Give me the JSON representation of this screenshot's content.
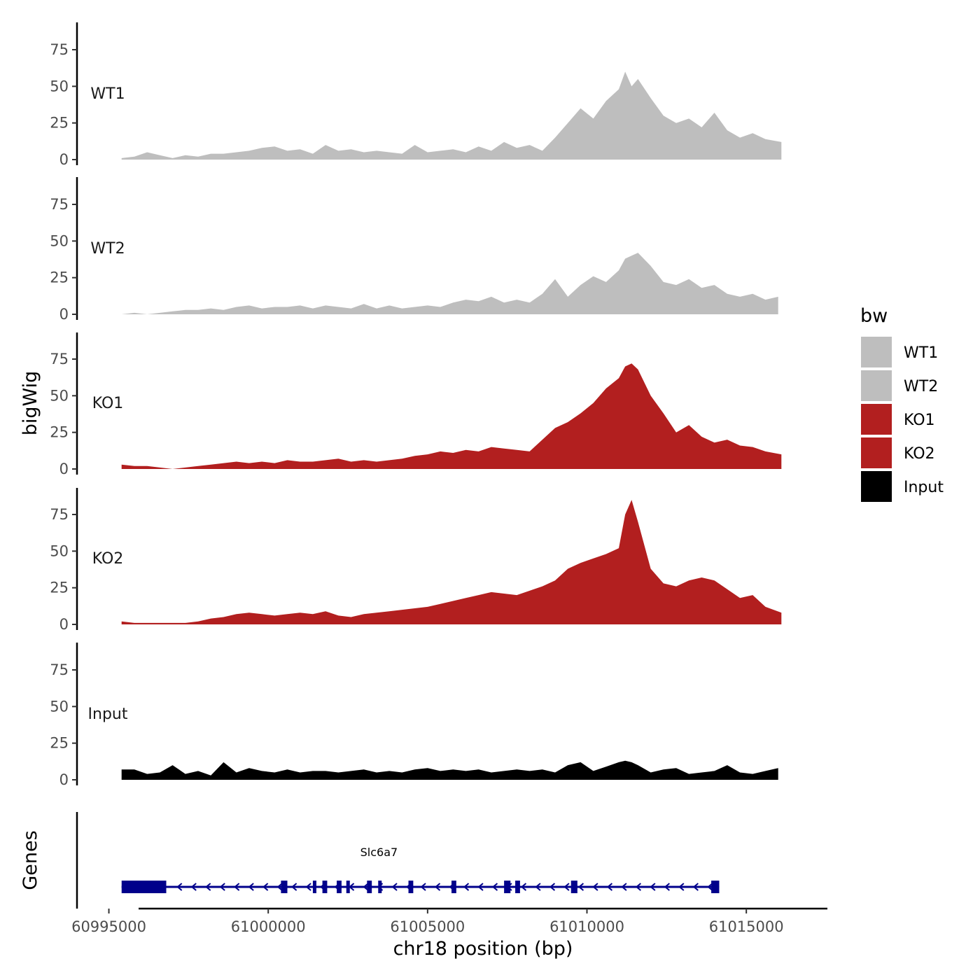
{
  "chart_data": {
    "type": "area",
    "ylabel": "bigWig",
    "xlabel": "chr18 position (bp)",
    "gene_track_label": "Genes",
    "legend_title": "bw",
    "xlim": [
      60994000,
      61017500
    ],
    "x_ticks": [
      60995000,
      61000000,
      61005000,
      61010000,
      61015000
    ],
    "x_tick_labels": [
      "60995000",
      "61000000",
      "61005000",
      "61010000",
      "61015000"
    ],
    "ylim": [
      0,
      95
    ],
    "y_ticks": [
      0,
      25,
      50,
      75
    ],
    "y_tick_labels": [
      "0",
      "25",
      "50",
      "75"
    ],
    "colors": {
      "WT1": "#bebebe",
      "WT2": "#bebebe",
      "KO1": "#b21f1f",
      "KO2": "#b21f1f",
      "Input": "#000000",
      "gene": "#00008b"
    },
    "legend": [
      "WT1",
      "WT2",
      "KO1",
      "KO2",
      "Input"
    ],
    "series": [
      {
        "name": "WT1",
        "label": "WT1",
        "x": [
          60995400,
          60995800,
          60996200,
          60996600,
          60997000,
          60997400,
          60997800,
          60998200,
          60998600,
          60999000,
          60999400,
          60999800,
          61000200,
          61000600,
          61001000,
          61001400,
          61001800,
          61002200,
          61002600,
          61003000,
          61003400,
          61003800,
          61004200,
          61004600,
          61005000,
          61005400,
          61005800,
          61006200,
          61006600,
          61007000,
          61007400,
          61007800,
          61008200,
          61008600,
          61009000,
          61009400,
          61009800,
          61010200,
          61010600,
          61011000,
          61011200,
          61011400,
          61011600,
          61012000,
          61012400,
          61012800,
          61013200,
          61013600,
          61014000,
          61014400,
          61014800,
          61015200,
          61015600,
          61016100
        ],
        "values": [
          1,
          2,
          5,
          3,
          1,
          3,
          2,
          4,
          4,
          5,
          6,
          8,
          9,
          6,
          7,
          4,
          10,
          6,
          7,
          5,
          6,
          5,
          4,
          10,
          5,
          6,
          7,
          5,
          9,
          6,
          12,
          8,
          10,
          6,
          15,
          25,
          35,
          28,
          40,
          48,
          60,
          50,
          55,
          42,
          30,
          25,
          28,
          22,
          32,
          20,
          15,
          18,
          14,
          12
        ]
      },
      {
        "name": "WT2",
        "label": "WT2",
        "x": [
          60995400,
          60995800,
          60996200,
          60996600,
          60997000,
          60997400,
          60997800,
          60998200,
          60998600,
          60999000,
          60999400,
          60999800,
          61000200,
          61000600,
          61001000,
          61001400,
          61001800,
          61002200,
          61002600,
          61003000,
          61003400,
          61003800,
          61004200,
          61004600,
          61005000,
          61005400,
          61005800,
          61006200,
          61006600,
          61007000,
          61007400,
          61007800,
          61008200,
          61008600,
          61009000,
          61009400,
          61009800,
          61010200,
          61010600,
          61011000,
          61011200,
          61011400,
          61011600,
          61012000,
          61012400,
          61012800,
          61013200,
          61013600,
          61014000,
          61014400,
          61014800,
          61015200,
          61015600,
          61016000
        ],
        "values": [
          0,
          1,
          0,
          1,
          2,
          3,
          3,
          4,
          3,
          5,
          6,
          4,
          5,
          5,
          6,
          4,
          6,
          5,
          4,
          7,
          4,
          6,
          4,
          5,
          6,
          5,
          8,
          10,
          9,
          12,
          8,
          10,
          8,
          14,
          24,
          12,
          20,
          26,
          22,
          30,
          38,
          40,
          42,
          33,
          22,
          20,
          24,
          18,
          20,
          14,
          12,
          14,
          10,
          12
        ]
      },
      {
        "name": "KO1",
        "label": "KO1",
        "x": [
          60995400,
          60995800,
          60996200,
          60996600,
          60997000,
          60997400,
          60997800,
          60998200,
          60998600,
          60999000,
          60999400,
          60999800,
          61000200,
          61000600,
          61001000,
          61001400,
          61001800,
          61002200,
          61002600,
          61003000,
          61003400,
          61003800,
          61004200,
          61004600,
          61005000,
          61005400,
          61005800,
          61006200,
          61006600,
          61007000,
          61007400,
          61007800,
          61008200,
          61008600,
          61009000,
          61009400,
          61009800,
          61010200,
          61010600,
          61011000,
          61011200,
          61011400,
          61011600,
          61012000,
          61012400,
          61012800,
          61013200,
          61013600,
          61014000,
          61014400,
          61014800,
          61015200,
          61015600,
          61016100
        ],
        "values": [
          3,
          2,
          2,
          1,
          0,
          1,
          2,
          3,
          4,
          5,
          4,
          5,
          4,
          6,
          5,
          5,
          6,
          7,
          5,
          6,
          5,
          6,
          7,
          9,
          10,
          12,
          11,
          13,
          12,
          15,
          14,
          13,
          12,
          20,
          28,
          32,
          38,
          45,
          55,
          62,
          70,
          72,
          68,
          50,
          38,
          25,
          30,
          22,
          18,
          20,
          16,
          15,
          12,
          10
        ]
      },
      {
        "name": "KO2",
        "label": "KO2",
        "x": [
          60995400,
          60995800,
          60996200,
          60996600,
          60997000,
          60997400,
          60997800,
          60998200,
          60998600,
          60999000,
          60999400,
          60999800,
          61000200,
          61000600,
          61001000,
          61001400,
          61001800,
          61002200,
          61002600,
          61003000,
          61003400,
          61003800,
          61004200,
          61004600,
          61005000,
          61005400,
          61005800,
          61006200,
          61006600,
          61007000,
          61007400,
          61007800,
          61008200,
          61008600,
          61009000,
          61009400,
          61009800,
          61010200,
          61010600,
          61011000,
          61011200,
          61011400,
          61011600,
          61012000,
          61012400,
          61012800,
          61013200,
          61013600,
          61014000,
          61014400,
          61014800,
          61015200,
          61015600,
          61016100
        ],
        "values": [
          2,
          1,
          1,
          1,
          1,
          1,
          2,
          4,
          5,
          7,
          8,
          7,
          6,
          7,
          8,
          7,
          9,
          6,
          5,
          7,
          8,
          9,
          10,
          11,
          12,
          14,
          16,
          18,
          20,
          22,
          21,
          20,
          23,
          26,
          30,
          38,
          42,
          45,
          48,
          52,
          75,
          85,
          70,
          38,
          28,
          26,
          30,
          32,
          30,
          24,
          18,
          20,
          12,
          8
        ]
      },
      {
        "name": "Input",
        "label": "Input",
        "x": [
          60995400,
          60995800,
          60996200,
          60996600,
          60997000,
          60997400,
          60997800,
          60998200,
          60998600,
          60999000,
          60999400,
          60999800,
          61000200,
          61000600,
          61001000,
          61001400,
          61001800,
          61002200,
          61002600,
          61003000,
          61003400,
          61003800,
          61004200,
          61004600,
          61005000,
          61005400,
          61005800,
          61006200,
          61006600,
          61007000,
          61007400,
          61007800,
          61008200,
          61008600,
          61009000,
          61009400,
          61009800,
          61010200,
          61010600,
          61011000,
          61011200,
          61011400,
          61011600,
          61012000,
          61012400,
          61012800,
          61013200,
          61013600,
          61014000,
          61014400,
          61014800,
          61015200,
          61015600,
          61016000
        ],
        "values": [
          7,
          7,
          4,
          5,
          10,
          4,
          6,
          3,
          12,
          5,
          8,
          6,
          5,
          7,
          5,
          6,
          6,
          5,
          6,
          7,
          5,
          6,
          5,
          7,
          8,
          6,
          7,
          6,
          7,
          5,
          6,
          7,
          6,
          7,
          5,
          10,
          12,
          6,
          9,
          12,
          13,
          12,
          10,
          5,
          7,
          8,
          4,
          5,
          6,
          10,
          5,
          4,
          6,
          8
        ]
      }
    ],
    "gene": {
      "name": "Slc6a7",
      "start": 60995400,
      "end": 61014150,
      "strand": "-",
      "exons": [
        [
          60995400,
          60996800
        ],
        [
          61000400,
          61000600
        ],
        [
          61001400,
          61001500
        ],
        [
          61001700,
          61001850
        ],
        [
          61002150,
          61002300
        ],
        [
          61002450,
          61002550
        ],
        [
          61003100,
          61003250
        ],
        [
          61003450,
          61003550
        ],
        [
          61004400,
          61004550
        ],
        [
          61005750,
          61005900
        ],
        [
          61007400,
          61007600
        ],
        [
          61007750,
          61007900
        ],
        [
          61009500,
          61009700
        ],
        [
          61013900,
          61014150
        ]
      ]
    }
  }
}
